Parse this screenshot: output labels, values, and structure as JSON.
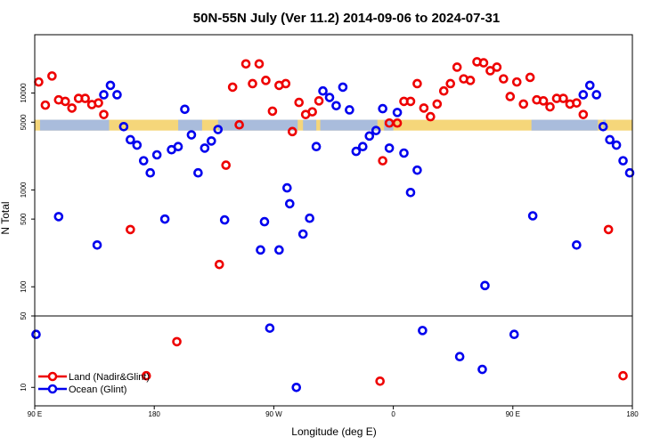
{
  "chart_data": {
    "type": "scatter",
    "title": "50N-55N July (Ver 11.2)   2014-09-06 to 2024-07-31",
    "xlabel": "Longitude (deg E)",
    "ylabel": "N Total",
    "x_scale": "longitude starting at 90E, wrapping through 180 to 180 again",
    "xlim_deg_east_of_90E": [
      0,
      450
    ],
    "x_ticks": [
      {
        "value": 0,
        "label": "90 E"
      },
      {
        "value": 90,
        "label": "180"
      },
      {
        "value": 180,
        "label": "90 W"
      },
      {
        "value": 270,
        "label": "0"
      },
      {
        "value": 360,
        "label": "90 E"
      },
      {
        "value": 450,
        "label": "180"
      }
    ],
    "y_scale": "log",
    "upper_panel": {
      "ylim": [
        50,
        40000
      ],
      "y_ticks": [
        {
          "value": 100,
          "label": "100"
        },
        {
          "value": 500,
          "label": "500"
        },
        {
          "value": 1000,
          "label": "1000"
        },
        {
          "value": 5000,
          "label": "5000"
        },
        {
          "value": 10000,
          "label": "10000"
        }
      ]
    },
    "lower_panel": {
      "ylim": [
        6.6,
        50
      ],
      "y_ticks": [
        {
          "value": 10,
          "label": "10"
        },
        {
          "value": 50,
          "label": "50"
        }
      ]
    },
    "land_ocean_strip": {
      "y_range": [
        4100,
        5300
      ],
      "land_color": "#f5d67a",
      "ocean_color": "#a9bcdc",
      "ocean_ranges_deg_east_of_90E": [
        [
          4,
          56
        ],
        [
          108,
          126
        ],
        [
          138,
          198
        ],
        [
          202,
          212
        ],
        [
          215,
          258
        ],
        [
          263,
          270
        ],
        [
          374,
          424
        ],
        [
          428,
          430
        ]
      ]
    },
    "series": [
      {
        "name": "Land (Nadir&Glint)",
        "color": "#ee0000",
        "points": [
          {
            "x": 3,
            "y": 13000
          },
          {
            "x": 8,
            "y": 7500
          },
          {
            "x": 13,
            "y": 15000
          },
          {
            "x": 18,
            "y": 8500
          },
          {
            "x": 23,
            "y": 8200
          },
          {
            "x": 28,
            "y": 7000
          },
          {
            "x": 33,
            "y": 8800
          },
          {
            "x": 38,
            "y": 8800
          },
          {
            "x": 43,
            "y": 7600
          },
          {
            "x": 48,
            "y": 7900
          },
          {
            "x": 52,
            "y": 6000
          },
          {
            "x": 72,
            "y": 390
          },
          {
            "x": 139,
            "y": 170
          },
          {
            "x": 144,
            "y": 1800
          },
          {
            "x": 149,
            "y": 11500
          },
          {
            "x": 154,
            "y": 4700
          },
          {
            "x": 159,
            "y": 20000
          },
          {
            "x": 164,
            "y": 12500
          },
          {
            "x": 169,
            "y": 20000
          },
          {
            "x": 174,
            "y": 13500
          },
          {
            "x": 179,
            "y": 6500
          },
          {
            "x": 184,
            "y": 12000
          },
          {
            "x": 189,
            "y": 12500
          },
          {
            "x": 194,
            "y": 4000
          },
          {
            "x": 199,
            "y": 8000
          },
          {
            "x": 204,
            "y": 6000
          },
          {
            "x": 209,
            "y": 6400
          },
          {
            "x": 214,
            "y": 8300
          },
          {
            "x": 262,
            "y": 2000
          },
          {
            "x": 267,
            "y": 4900
          },
          {
            "x": 273,
            "y": 4900
          },
          {
            "x": 278,
            "y": 8200
          },
          {
            "x": 283,
            "y": 8200
          },
          {
            "x": 288,
            "y": 12500
          },
          {
            "x": 293,
            "y": 7000
          },
          {
            "x": 298,
            "y": 5700
          },
          {
            "x": 303,
            "y": 7700
          },
          {
            "x": 308,
            "y": 10500
          },
          {
            "x": 313,
            "y": 12500
          },
          {
            "x": 318,
            "y": 18500
          },
          {
            "x": 323,
            "y": 14000
          },
          {
            "x": 328,
            "y": 13500
          },
          {
            "x": 333,
            "y": 21000
          },
          {
            "x": 338,
            "y": 20500
          },
          {
            "x": 343,
            "y": 17000
          },
          {
            "x": 348,
            "y": 18500
          },
          {
            "x": 353,
            "y": 14000
          },
          {
            "x": 358,
            "y": 9200
          },
          {
            "x": 363,
            "y": 13000
          },
          {
            "x": 368,
            "y": 7700
          },
          {
            "x": 373,
            "y": 14500
          },
          {
            "x": 378,
            "y": 8500
          },
          {
            "x": 383,
            "y": 8300
          },
          {
            "x": 388,
            "y": 7200
          },
          {
            "x": 393,
            "y": 8800
          },
          {
            "x": 398,
            "y": 8800
          },
          {
            "x": 403,
            "y": 7700
          },
          {
            "x": 408,
            "y": 7900
          },
          {
            "x": 413,
            "y": 6000
          },
          {
            "x": 432,
            "y": 390
          },
          {
            "x": 84,
            "y": 13
          },
          {
            "x": 107,
            "y": 28
          },
          {
            "x": 260,
            "y": 11.5
          },
          {
            "x": 443,
            "y": 13
          }
        ]
      },
      {
        "name": "Ocean (Glint)",
        "color": "#0000ee",
        "points": [
          {
            "x": 18,
            "y": 530
          },
          {
            "x": 47,
            "y": 270
          },
          {
            "x": 52,
            "y": 9600
          },
          {
            "x": 57,
            "y": 12000
          },
          {
            "x": 62,
            "y": 9600
          },
          {
            "x": 67,
            "y": 4500
          },
          {
            "x": 72,
            "y": 3300
          },
          {
            "x": 77,
            "y": 2900
          },
          {
            "x": 82,
            "y": 2000
          },
          {
            "x": 87,
            "y": 1500
          },
          {
            "x": 92,
            "y": 2300
          },
          {
            "x": 98,
            "y": 500
          },
          {
            "x": 103,
            "y": 2600
          },
          {
            "x": 108,
            "y": 2800
          },
          {
            "x": 113,
            "y": 6800
          },
          {
            "x": 118,
            "y": 3700
          },
          {
            "x": 123,
            "y": 1500
          },
          {
            "x": 128,
            "y": 2700
          },
          {
            "x": 133,
            "y": 3200
          },
          {
            "x": 138,
            "y": 4200
          },
          {
            "x": 143,
            "y": 490
          },
          {
            "x": 170,
            "y": 240
          },
          {
            "x": 173,
            "y": 470
          },
          {
            "x": 184,
            "y": 240
          },
          {
            "x": 190,
            "y": 1050
          },
          {
            "x": 192,
            "y": 720
          },
          {
            "x": 202,
            "y": 350
          },
          {
            "x": 207,
            "y": 510
          },
          {
            "x": 212,
            "y": 2800
          },
          {
            "x": 217,
            "y": 10500
          },
          {
            "x": 222,
            "y": 9000
          },
          {
            "x": 227,
            "y": 7400
          },
          {
            "x": 232,
            "y": 11500
          },
          {
            "x": 237,
            "y": 6700
          },
          {
            "x": 242,
            "y": 2500
          },
          {
            "x": 247,
            "y": 2800
          },
          {
            "x": 252,
            "y": 3600
          },
          {
            "x": 257,
            "y": 4100
          },
          {
            "x": 262,
            "y": 6900
          },
          {
            "x": 267,
            "y": 2700
          },
          {
            "x": 273,
            "y": 6300
          },
          {
            "x": 278,
            "y": 2400
          },
          {
            "x": 283,
            "y": 940
          },
          {
            "x": 288,
            "y": 1600
          },
          {
            "x": 339,
            "y": 103
          },
          {
            "x": 375,
            "y": 540
          },
          {
            "x": 408,
            "y": 270
          },
          {
            "x": 413,
            "y": 9600
          },
          {
            "x": 418,
            "y": 12000
          },
          {
            "x": 423,
            "y": 9600
          },
          {
            "x": 428,
            "y": 4500
          },
          {
            "x": 433,
            "y": 3300
          },
          {
            "x": 438,
            "y": 2900
          },
          {
            "x": 443,
            "y": 2000
          },
          {
            "x": 448,
            "y": 1500
          },
          {
            "x": 1,
            "y": 33
          },
          {
            "x": 177,
            "y": 38
          },
          {
            "x": 197,
            "y": 10
          },
          {
            "x": 292,
            "y": 36
          },
          {
            "x": 320,
            "y": 20
          },
          {
            "x": 337,
            "y": 15
          },
          {
            "x": 361,
            "y": 33
          }
        ]
      }
    ],
    "legend": {
      "placement": "bottom-left",
      "entries": [
        "Land (Nadir&Glint)",
        "Ocean (Glint)"
      ]
    }
  }
}
